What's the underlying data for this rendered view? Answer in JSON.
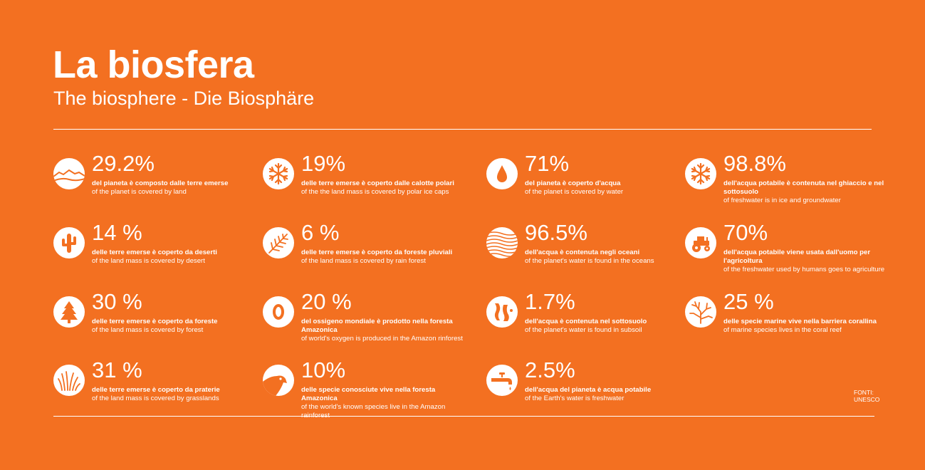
{
  "header": {
    "title": "La biosfera",
    "subtitle": "The biosphere - Die Biosphäre"
  },
  "stats": [
    {
      "icon": "land-icon",
      "value": "29.2%",
      "label_it": "del pianeta è composto dalle terre emerse",
      "label_en": "of the planet is covered by land"
    },
    {
      "icon": "snowflake-icon",
      "value": "19%",
      "label_it": "delle terre emerse è coperto dalle calotte polari",
      "label_en": "of the the land mass is covered by polar ice caps"
    },
    {
      "icon": "water-drop-icon",
      "value": "71%",
      "label_it": "del pianeta è coperto d'acqua",
      "label_en": "of the planet is covered by water"
    },
    {
      "icon": "snowflake-icon",
      "value": "98.8%",
      "label_it": "dell'acqua potabile è contenuta nel ghiaccio e nel sottosuolo",
      "label_en": "of freshwater is in ice and groundwater"
    },
    {
      "icon": "cactus-icon",
      "value": "14 %",
      "label_it": "delle terre emerse è coperto da deserti",
      "label_en": "of the land mass is covered by desert"
    },
    {
      "icon": "fern-icon",
      "value": "6 %",
      "label_it": "delle terre emerse è coperto da foreste pluviali",
      "label_en": "of the land mass is covered by rain forest"
    },
    {
      "icon": "waves-icon",
      "value": "96.5%",
      "label_it": "dell'acqua è contenuta negli oceani",
      "label_en": "of the planet's water is found in the oceans"
    },
    {
      "icon": "tractor-icon",
      "value": "70%",
      "label_it": "dell'acqua potabile viene usata dall'uomo per l'agricoltura",
      "label_en": "of the freshwater used by humans goes to agriculture"
    },
    {
      "icon": "tree-icon",
      "value": "30 %",
      "label_it": "delle terre emerse è coperto da foreste",
      "label_en": "of the land mass is covered by forest"
    },
    {
      "icon": "oxygen-icon",
      "value": "20 %",
      "label_it": "del ossigeno mondiale è prodotto nella foresta Amazonica",
      "label_en": "of world's oxygen is produced in the Amazon rinforest"
    },
    {
      "icon": "subsoil-icon",
      "value": "1.7%",
      "label_it": "dell'acqua è contenuta nel sottosuolo",
      "label_en": "of the planet's water is found in subsoil"
    },
    {
      "icon": "coral-icon",
      "value": "25 %",
      "label_it": "delle specie marine vive nella barriera corallina",
      "label_en": "of marine species lives in the coral reef"
    },
    {
      "icon": "grass-icon",
      "value": "31 %",
      "label_it": "delle terre emerse è coperto da praterie",
      "label_en": "of the land mass is covered by grasslands"
    },
    {
      "icon": "bird-icon",
      "value": "10%",
      "label_it": "delle specie conosciute vive nella foresta Amazonica",
      "label_en": "of the world's known species live in the Amazon rainforest"
    },
    {
      "icon": "faucet-icon",
      "value": "2.5%",
      "label_it": "dell'acqua del pianeta è acqua potabile",
      "label_en": "of the Earth's water is freshwater"
    }
  ],
  "source": {
    "label": "FONTI:",
    "name": "UNESCO"
  },
  "colors": {
    "background": "#F37021",
    "foreground": "#FFFFFF"
  }
}
